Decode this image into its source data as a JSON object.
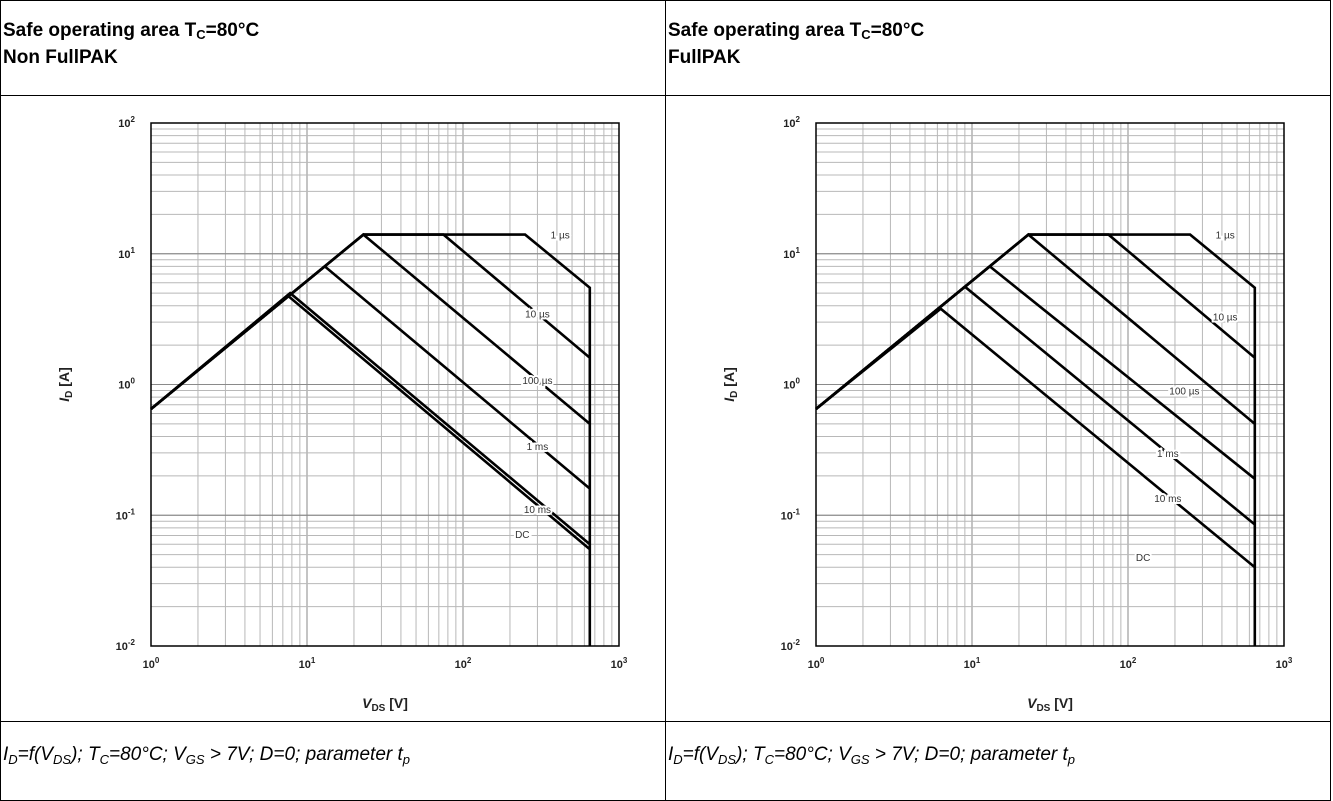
{
  "panels": [
    {
      "title_prefix": "Safe operating area T",
      "title_sub": "C",
      "title_suffix": "=80°C",
      "subtitle": "Non FullPAK",
      "caption": {
        "p1": "I",
        "s1": "D",
        "p2": "=f(V",
        "s2": "DS",
        "p3": "); T",
        "s3": "C",
        "p4": "=80°C; V",
        "s4": "GS",
        "p5": " > 7V; D=0; parameter t",
        "s5": "p"
      }
    },
    {
      "title_prefix": "Safe operating area T",
      "title_sub": "C",
      "title_suffix": "=80°C",
      "subtitle": "FullPAK",
      "caption": {
        "p1": "I",
        "s1": "D",
        "p2": "=f(V",
        "s2": "DS",
        "p3": "); T",
        "s3": "C",
        "p4": "=80°C; V",
        "s4": "GS",
        "p5": " > 7V; D=0; parameter t",
        "s5": "p"
      }
    }
  ],
  "chart_data": [
    {
      "type": "line",
      "title": "",
      "xlabel": "V_DS [V]",
      "ylabel": "I_D [A]",
      "x_scale": "log",
      "y_scale": "log",
      "xlim": [
        1,
        1000
      ],
      "ylim": [
        0.01,
        100
      ],
      "grid": true,
      "x_ticks": [
        {
          "base": "10",
          "exp": "0"
        },
        {
          "base": "10",
          "exp": "1"
        },
        {
          "base": "10",
          "exp": "2"
        },
        {
          "base": "10",
          "exp": "3"
        }
      ],
      "y_ticks": [
        {
          "base": "10",
          "exp": "-2"
        },
        {
          "base": "10",
          "exp": "-1"
        },
        {
          "base": "10",
          "exp": "0"
        },
        {
          "base": "10",
          "exp": "1"
        },
        {
          "base": "10",
          "exp": "2"
        }
      ],
      "series": [
        {
          "name": "1 µs",
          "points": [
            [
              1,
              0.65
            ],
            [
              23,
              14
            ],
            [
              250,
              14
            ],
            [
              650,
              5.5
            ],
            [
              650,
              0.01
            ]
          ]
        },
        {
          "name": "10 µs",
          "points": [
            [
              1,
              0.65
            ],
            [
              23,
              14
            ],
            [
              75,
              14
            ],
            [
              650,
              1.6
            ]
          ]
        },
        {
          "name": "100 µs",
          "points": [
            [
              1,
              0.65
            ],
            [
              23,
              14
            ],
            [
              650,
              0.5
            ]
          ]
        },
        {
          "name": "1 ms",
          "points": [
            [
              1,
              0.65
            ],
            [
              13,
              8
            ],
            [
              650,
              0.16
            ]
          ]
        },
        {
          "name": "10 ms",
          "points": [
            [
              1,
              0.65
            ],
            [
              7.8,
              5
            ],
            [
              650,
              0.06
            ]
          ]
        },
        {
          "name": "DC",
          "points": [
            [
              1,
              0.65
            ],
            [
              7.5,
              4.8
            ],
            [
              650,
              0.055
            ]
          ]
        }
      ],
      "labels": [
        {
          "text": "1 µs",
          "x": 420,
          "y": 14
        },
        {
          "text": "10 µs",
          "x": 300,
          "y": 3.5
        },
        {
          "text": "100 µs",
          "x": 300,
          "y": 1.08
        },
        {
          "text": "1 ms",
          "x": 300,
          "y": 0.34
        },
        {
          "text": "10 ms",
          "x": 300,
          "y": 0.112
        },
        {
          "text": "DC",
          "x": 240,
          "y": 0.072
        }
      ]
    },
    {
      "type": "line",
      "title": "",
      "xlabel": "V_DS [V]",
      "ylabel": "I_D [A]",
      "x_scale": "log",
      "y_scale": "log",
      "xlim": [
        1,
        1000
      ],
      "ylim": [
        0.01,
        100
      ],
      "grid": true,
      "x_ticks": [
        {
          "base": "10",
          "exp": "0"
        },
        {
          "base": "10",
          "exp": "1"
        },
        {
          "base": "10",
          "exp": "2"
        },
        {
          "base": "10",
          "exp": "3"
        }
      ],
      "y_ticks": [
        {
          "base": "10",
          "exp": "-2"
        },
        {
          "base": "10",
          "exp": "-1"
        },
        {
          "base": "10",
          "exp": "0"
        },
        {
          "base": "10",
          "exp": "1"
        },
        {
          "base": "10",
          "exp": "2"
        }
      ],
      "series": [
        {
          "name": "1 µs",
          "points": [
            [
              1,
              0.65
            ],
            [
              23,
              14
            ],
            [
              250,
              14
            ],
            [
              650,
              5.5
            ],
            [
              650,
              0.01
            ]
          ]
        },
        {
          "name": "10 µs",
          "points": [
            [
              1,
              0.65
            ],
            [
              23,
              14
            ],
            [
              75,
              14
            ],
            [
              650,
              1.6
            ]
          ]
        },
        {
          "name": "100 µs",
          "points": [
            [
              1,
              0.65
            ],
            [
              23,
              14
            ],
            [
              650,
              0.5
            ]
          ]
        },
        {
          "name": "1 ms",
          "points": [
            [
              1,
              0.65
            ],
            [
              13,
              8
            ],
            [
              650,
              0.19
            ]
          ]
        },
        {
          "name": "10 ms",
          "points": [
            [
              1,
              0.65
            ],
            [
              9,
              5.6
            ],
            [
              650,
              0.085
            ]
          ]
        },
        {
          "name": "DC",
          "points": [
            [
              1,
              0.65
            ],
            [
              6.3,
              3.8
            ],
            [
              650,
              0.04
            ]
          ]
        }
      ],
      "labels": [
        {
          "text": "1 µs",
          "x": 420,
          "y": 14
        },
        {
          "text": "10 µs",
          "x": 420,
          "y": 3.3
        },
        {
          "text": "100 µs",
          "x": 230,
          "y": 0.9
        },
        {
          "text": "1 ms",
          "x": 180,
          "y": 0.3
        },
        {
          "text": "10 ms",
          "x": 180,
          "y": 0.135
        },
        {
          "text": "DC",
          "x": 125,
          "y": 0.048
        }
      ]
    }
  ]
}
